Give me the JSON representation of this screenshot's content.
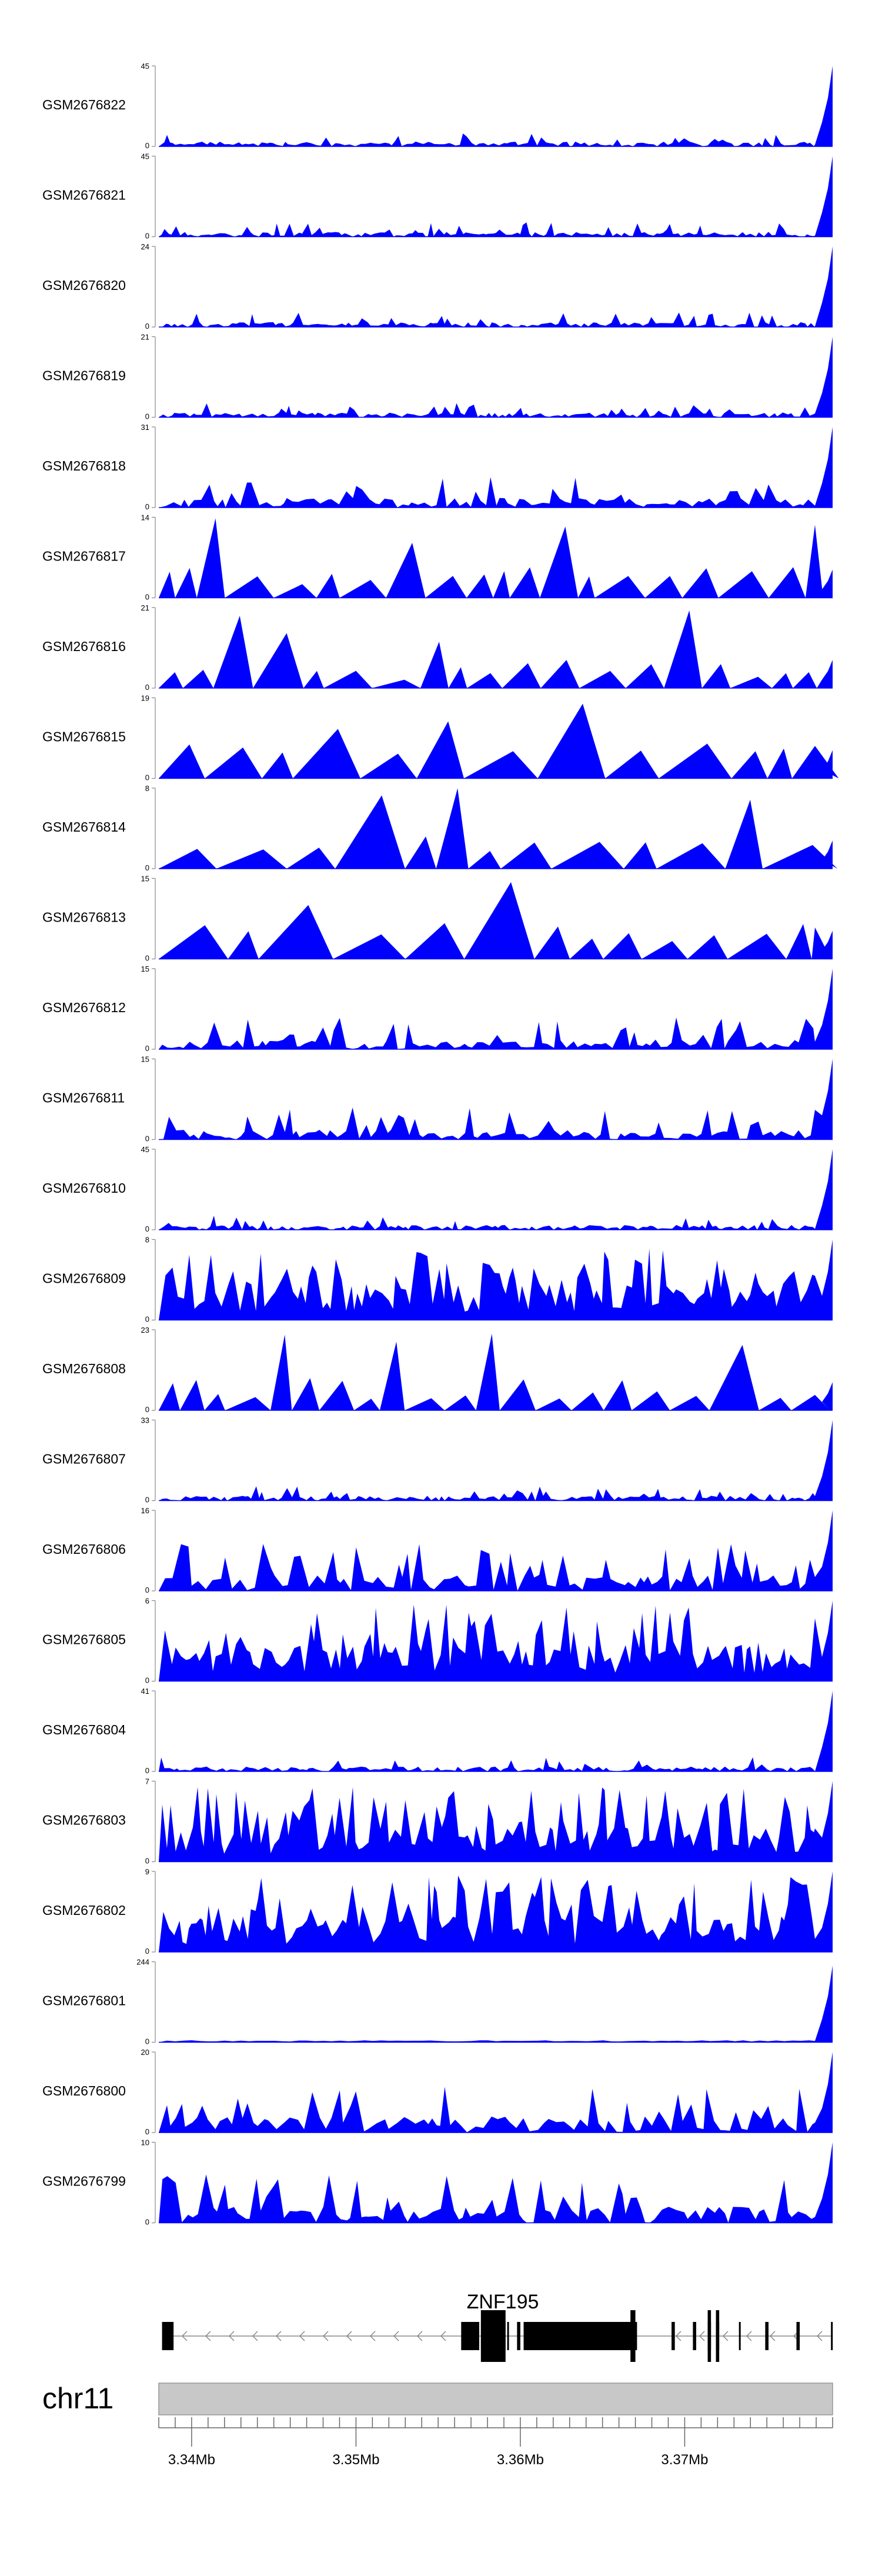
{
  "chart_data": {
    "type": "area",
    "title": "",
    "chromosome": "chr11",
    "x_range_mb": [
      3.338,
      3.379
    ],
    "track_color": "#0000ff",
    "tracks": [
      {
        "name": "GSM2676822",
        "ymax": "45",
        "pattern": "low",
        "seed": 11
      },
      {
        "name": "GSM2676821",
        "ymax": "45",
        "pattern": "low",
        "seed": 12
      },
      {
        "name": "GSM2676820",
        "ymax": "24",
        "pattern": "low",
        "seed": 13
      },
      {
        "name": "GSM2676819",
        "ymax": "21",
        "pattern": "low",
        "seed": 14
      },
      {
        "name": "GSM2676818",
        "ymax": "31",
        "pattern": "lowmed",
        "seed": 15
      },
      {
        "name": "GSM2676817",
        "ymax": "14",
        "pattern": "spiky",
        "seed": 16
      },
      {
        "name": "GSM2676816",
        "ymax": "21",
        "pattern": "spiky",
        "seed": 17
      },
      {
        "name": "GSM2676815",
        "ymax": "19",
        "pattern": "sparse",
        "seed": 18
      },
      {
        "name": "GSM2676814",
        "ymax": "8",
        "pattern": "sparse",
        "seed": 19
      },
      {
        "name": "GSM2676813",
        "ymax": "15",
        "pattern": "sparse",
        "seed": 20
      },
      {
        "name": "GSM2676812",
        "ymax": "15",
        "pattern": "lowmed",
        "seed": 21
      },
      {
        "name": "GSM2676811",
        "ymax": "15",
        "pattern": "lowmed",
        "seed": 22
      },
      {
        "name": "GSM2676810",
        "ymax": "45",
        "pattern": "low",
        "seed": 23
      },
      {
        "name": "GSM2676809",
        "ymax": "8",
        "pattern": "dense",
        "seed": 24
      },
      {
        "name": "GSM2676808",
        "ymax": "23",
        "pattern": "spiky",
        "seed": 25
      },
      {
        "name": "GSM2676807",
        "ymax": "33",
        "pattern": "low",
        "seed": 26
      },
      {
        "name": "GSM2676806",
        "ymax": "16",
        "pattern": "medium",
        "seed": 27
      },
      {
        "name": "GSM2676805",
        "ymax": "6",
        "pattern": "dense",
        "seed": 28
      },
      {
        "name": "GSM2676804",
        "ymax": "41",
        "pattern": "low",
        "seed": 29
      },
      {
        "name": "GSM2676803",
        "ymax": "7",
        "pattern": "dense",
        "seed": 30
      },
      {
        "name": "GSM2676802",
        "ymax": "9",
        "pattern": "dense",
        "seed": 31
      },
      {
        "name": "GSM2676801",
        "ymax": "244",
        "pattern": "flat",
        "seed": 32
      },
      {
        "name": "GSM2676800",
        "ymax": "20",
        "pattern": "medium",
        "seed": 33
      },
      {
        "name": "GSM2676799",
        "ymax": "10",
        "pattern": "medium",
        "seed": 34
      }
    ],
    "y_min_label": "0",
    "gene": {
      "name": "ZNF195",
      "strand": "-",
      "exons_mb": [
        [
          3.3382,
          3.3389
        ],
        [
          3.3564,
          3.3575
        ],
        [
          3.3576,
          3.3591
        ],
        [
          3.3592,
          3.3593
        ],
        [
          3.3598,
          3.36
        ],
        [
          3.3602,
          3.3671
        ],
        [
          3.3667,
          3.367
        ],
        [
          3.3692,
          3.3694
        ],
        [
          3.3705,
          3.3707
        ],
        [
          3.3714,
          3.3716
        ],
        [
          3.3719,
          3.3721
        ],
        [
          3.3733,
          3.3734
        ],
        [
          3.3749,
          3.3751
        ],
        [
          3.3768,
          3.377
        ],
        [
          3.3789,
          3.379
        ]
      ],
      "tall_exons_mb": [
        [
          3.3576,
          3.3591
        ],
        [
          3.3667,
          3.367
        ],
        [
          3.3714,
          3.3716
        ],
        [
          3.3719,
          3.3721
        ]
      ]
    },
    "axis": {
      "ticks_mb": [
        3.338,
        3.339,
        3.34,
        3.341,
        3.342,
        3.343,
        3.344,
        3.345,
        3.346,
        3.347,
        3.348,
        3.349,
        3.35,
        3.351,
        3.352,
        3.353,
        3.354,
        3.355,
        3.356,
        3.357,
        3.358,
        3.359,
        3.36,
        3.361,
        3.362,
        3.363,
        3.364,
        3.365,
        3.366,
        3.367,
        3.368,
        3.369,
        3.37,
        3.371,
        3.372,
        3.373,
        3.374,
        3.375,
        3.376,
        3.377,
        3.378,
        3.379
      ],
      "labels": [
        {
          "mb": 3.34,
          "text": "3.34Mb"
        },
        {
          "mb": 3.35,
          "text": "3.35Mb"
        },
        {
          "mb": 3.36,
          "text": "3.36Mb"
        },
        {
          "mb": 3.37,
          "text": "3.37Mb"
        }
      ]
    }
  }
}
